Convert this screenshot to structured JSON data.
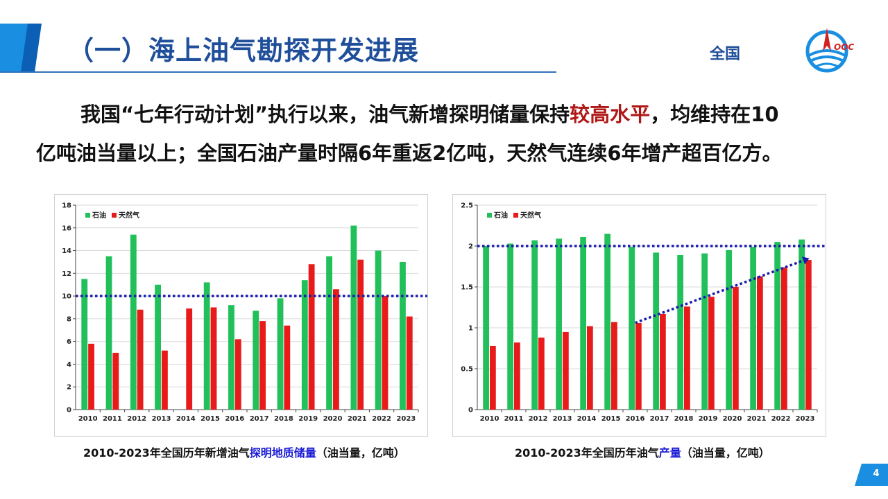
{
  "header": {
    "title": "（一）海上油气勘探开发进展",
    "region": "全国",
    "accent_color": "#1f4e9a"
  },
  "lead": {
    "line1_pre": "我国“七年行动计划”执行以来，油气新增探明储量保持",
    "line1_highlight": "较高水平",
    "line1_post": "，均维持在10",
    "line2": "亿吨油当量以上；全国石油产量时隔6年重返2亿吨，天然气连续6年增产超百亿方。"
  },
  "captions": {
    "left_pre": "2010-2023年全国历年新增油气",
    "left_highlight": "探明地质储量",
    "left_post": "（油当量，亿吨）",
    "right_pre": "2010-2023年全国历年油气",
    "right_highlight": "产量",
    "right_post": "（油当量，亿吨）"
  },
  "page_number": "4",
  "colors": {
    "oil": "#22c05a",
    "gas": "#e81a1a",
    "reference_line": "#1a1ab0"
  },
  "chart_data": [
    {
      "type": "bar",
      "categories": [
        "2010",
        "2011",
        "2012",
        "2013",
        "2014",
        "2015",
        "2016",
        "2017",
        "2018",
        "2019",
        "2020",
        "2021",
        "2022",
        "2023"
      ],
      "series": [
        {
          "name": "石油",
          "values": [
            11.5,
            13.5,
            15.4,
            11.0,
            null,
            11.2,
            9.2,
            8.7,
            9.8,
            11.4,
            13.5,
            16.2,
            14.0,
            13.0
          ]
        },
        {
          "name": "天然气",
          "values": [
            5.8,
            5.0,
            8.8,
            5.2,
            8.9,
            9.0,
            6.2,
            7.8,
            7.4,
            12.8,
            10.6,
            13.2,
            10.0,
            8.2
          ]
        }
      ],
      "yticks": [
        "0",
        "2",
        "4",
        "6",
        "8",
        "10",
        "12",
        "14",
        "16",
        "18"
      ],
      "ylim": [
        0,
        18
      ],
      "reference_line": 10,
      "legend": "top-left",
      "grid": true
    },
    {
      "type": "bar",
      "categories": [
        "2010",
        "2011",
        "2012",
        "2013",
        "2014",
        "2015",
        "2016",
        "2017",
        "2018",
        "2019",
        "2020",
        "2021",
        "2022",
        "2023"
      ],
      "series": [
        {
          "name": "石油",
          "values": [
            2.0,
            2.03,
            2.07,
            2.09,
            2.11,
            2.15,
            1.99,
            1.92,
            1.89,
            1.91,
            1.95,
            1.99,
            2.05,
            2.08
          ]
        },
        {
          "name": "天然气",
          "values": [
            0.78,
            0.82,
            0.88,
            0.95,
            1.02,
            1.07,
            1.06,
            1.17,
            1.26,
            1.38,
            1.5,
            1.63,
            1.74,
            1.83
          ]
        }
      ],
      "yticks": [
        "0",
        "0.5",
        "1",
        "1.5",
        "2",
        "2.5"
      ],
      "ylim": [
        0,
        2.5
      ],
      "reference_line": 2,
      "trend_arrow": {
        "from": {
          "x": "2016",
          "y": 1.06
        },
        "to": {
          "x": "2023",
          "y": 1.85
        }
      },
      "legend": "top-left",
      "grid": true
    }
  ]
}
